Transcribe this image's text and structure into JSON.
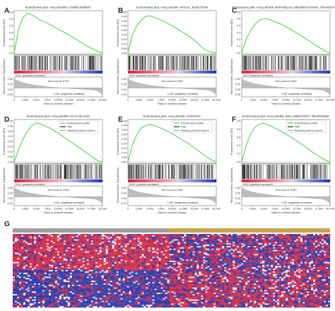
{
  "chart_data": [
    {
      "type": "line",
      "letter": "A",
      "title": "Enrichment plot: HALLMARK COMPLEMENT",
      "ylabel": "Enrichment score (ES)",
      "y_ticks": [
        "0.6",
        "0.5",
        "0.4",
        "0.3",
        "0.2",
        "0.1",
        "0.0"
      ],
      "ylim": [
        0,
        0.6
      ],
      "x_ticks": [
        "0",
        "2,500",
        "5,000",
        "7,500",
        "10,000",
        "12,500",
        "15,000",
        "17,500",
        "20,000"
      ],
      "xlim": [
        0,
        20000
      ],
      "x": [
        0,
        1000,
        2000,
        3000,
        4000,
        5000,
        6000,
        8000,
        10000,
        12000,
        14000,
        16000,
        18000,
        19000,
        20000
      ],
      "y": [
        0,
        0.35,
        0.52,
        0.58,
        0.56,
        0.52,
        0.48,
        0.42,
        0.35,
        0.28,
        0.2,
        0.12,
        0.05,
        0.02,
        0
      ],
      "high_label": "'HIGH' (positively correlated)",
      "low_label": "'LOW' (negatively correlated)",
      "zero_cross": "Zero cross at 11263",
      "metric_ylabel": "Ranked list metric (Signal2Noise)",
      "metric_ticks": [
        "0.50",
        "0.25",
        "0.00",
        "-0.25"
      ],
      "xlabel": "Rank in ordered dataset"
    },
    {
      "type": "line",
      "letter": "B",
      "title": "Enrichment plot: HALLMARK APICAL JUNCTION",
      "ylabel": "Enrichment score (ES)",
      "y_ticks": [
        "0.45",
        "0.40",
        "0.35",
        "0.30",
        "0.25",
        "0.20",
        "0.15",
        "0.10",
        "0.05",
        "0.00"
      ],
      "ylim": [
        0,
        0.45
      ],
      "x_ticks": [
        "0",
        "2,500",
        "5,000",
        "7,500",
        "10,000",
        "12,500",
        "15,000",
        "17,500",
        "20,000"
      ],
      "xlim": [
        0,
        20000
      ],
      "x": [
        0,
        1000,
        2000,
        3000,
        4000,
        5000,
        6000,
        8000,
        10000,
        12000,
        14000,
        16000,
        17500,
        19000,
        20000
      ],
      "y": [
        0,
        0.2,
        0.3,
        0.36,
        0.4,
        0.41,
        0.39,
        0.35,
        0.3,
        0.24,
        0.18,
        0.1,
        0.03,
        0.01,
        0
      ],
      "high_label": "'HIGH' (positively correlated)",
      "low_label": "'LOW' (negatively correlated)",
      "zero_cross": "Zero cross at 12464",
      "metric_ylabel": "Ranked list metric (Signal2Noise)",
      "metric_ticks": [
        "0.50",
        "0.25",
        "0.00",
        "-0.25"
      ],
      "xlabel": "Rank in ordered dataset"
    },
    {
      "type": "line",
      "letter": "C",
      "title": "Enrichment plot: HALLMARK EPITHELIAL MESENCHYMAL TRANSITION",
      "ylabel": "Enrichment score (ES)",
      "y_ticks": [
        "0.6",
        "0.5",
        "0.4",
        "0.3",
        "0.2",
        "0.1",
        "0.0"
      ],
      "ylim": [
        0,
        0.6
      ],
      "x_ticks": [
        "0",
        "2,500",
        "5,000",
        "7,500",
        "10,000",
        "12,500",
        "15,000",
        "17,500",
        "20,000"
      ],
      "xlim": [
        0,
        20000
      ],
      "x": [
        0,
        1000,
        2000,
        3000,
        4000,
        5000,
        6000,
        7000,
        9000,
        11000,
        13000,
        15000,
        17000,
        19000,
        20000
      ],
      "y": [
        0,
        0.2,
        0.33,
        0.42,
        0.48,
        0.5,
        0.5,
        0.47,
        0.42,
        0.35,
        0.27,
        0.19,
        0.1,
        0.03,
        0
      ],
      "high_label": "'HIGH' (positively correlated)",
      "low_label": "'LOW' (negatively correlated)",
      "zero_cross": "Zero cross at 12464",
      "metric_ylabel": "Ranked list metric (Signal2Noise)",
      "metric_ticks": [
        "0.50",
        "0.25",
        "0.00",
        "-0.25"
      ],
      "xlabel": "Rank in ordered dataset"
    },
    {
      "type": "line",
      "letter": "D",
      "title": "Enrichment plot: HALLMARK GLYCOLYSIS",
      "ylabel": "Enrichment score (ES)",
      "y_ticks": [
        "0.40",
        "0.35",
        "0.30",
        "0.25",
        "0.20",
        "0.15",
        "0.10",
        "0.05",
        "0.00"
      ],
      "ylim": [
        0,
        0.4
      ],
      "x_ticks": [
        "0",
        "2,500",
        "5,000",
        "7,500",
        "10,000",
        "12,500",
        "15,000",
        "17,500",
        "20,000"
      ],
      "xlim": [
        0,
        20000
      ],
      "x": [
        0,
        1000,
        2000,
        3000,
        4000,
        5000,
        6000,
        8000,
        10000,
        12000,
        14000,
        16000,
        18000,
        19000,
        20000
      ],
      "y": [
        0,
        0.12,
        0.22,
        0.3,
        0.35,
        0.38,
        0.37,
        0.33,
        0.28,
        0.22,
        0.16,
        0.1,
        0.04,
        0.01,
        0
      ],
      "high_label": "'HIGH' (positively correlated)",
      "low_label": "'LOW' (negatively correlated)",
      "zero_cross": "Zero cross at 12464",
      "metric_ylabel": "Ranked list metric (Signal2Noise)",
      "metric_ticks": [
        "0.50",
        "0.25",
        "0.00",
        "-0.25"
      ],
      "xlabel": "Rank in ordered dataset"
    },
    {
      "type": "line",
      "letter": "E",
      "title": "Enrichment plot: HALLMARK HYPOXIA",
      "ylabel": "Enrichment score (ES)",
      "y_ticks": [
        "0.45",
        "0.40",
        "0.35",
        "0.30",
        "0.25",
        "0.20",
        "0.15",
        "0.10",
        "0.05",
        "0.00"
      ],
      "ylim": [
        0,
        0.45
      ],
      "x_ticks": [
        "0",
        "2,500",
        "5,000",
        "7,500",
        "10,000",
        "12,500",
        "15,000",
        "17,500",
        "20,000"
      ],
      "xlim": [
        0,
        20000
      ],
      "x": [
        0,
        1000,
        2000,
        3000,
        4000,
        5000,
        6000,
        8000,
        10000,
        12000,
        14000,
        16000,
        18000,
        19000,
        20000
      ],
      "y": [
        0,
        0.18,
        0.3,
        0.37,
        0.4,
        0.41,
        0.4,
        0.36,
        0.31,
        0.25,
        0.19,
        0.12,
        0.05,
        0.02,
        0
      ],
      "high_label": "'HIGH' (positively correlated)",
      "low_label": "'LOW' (negatively correlated)",
      "zero_cross": "Zero cross at 12464",
      "metric_ylabel": "Ranked list metric (Signal2Noise)",
      "metric_ticks": [
        "0.50",
        "0.25",
        "0.00",
        "-0.25"
      ],
      "xlabel": "Rank in ordered dataset"
    },
    {
      "type": "line",
      "letter": "F",
      "title": "Enrichment plot: HALLMARK INFLAMMATORY RESPONSE",
      "ylabel": "Enrichment score (ES)",
      "y_ticks": [
        "0.5",
        "0.4",
        "0.3",
        "0.2",
        "0.1",
        "0.0"
      ],
      "ylim": [
        0,
        0.5
      ],
      "x_ticks": [
        "0",
        "2,500",
        "5,000",
        "7,500",
        "10,000",
        "12,500",
        "15,000",
        "17,500",
        "20,000"
      ],
      "xlim": [
        0,
        20000
      ],
      "x": [
        0,
        1000,
        2000,
        3000,
        4000,
        5000,
        6000,
        8000,
        10000,
        12000,
        14000,
        16000,
        18000,
        19000,
        20000
      ],
      "y": [
        0,
        0.2,
        0.34,
        0.42,
        0.46,
        0.47,
        0.45,
        0.4,
        0.34,
        0.27,
        0.2,
        0.12,
        0.05,
        0.02,
        0
      ],
      "high_label": "'HIGH' (positively correlated)",
      "low_label": "'LOW' (negatively correlated)",
      "zero_cross": "Zero cross at 12464",
      "metric_ylabel": "Ranked list metric (Signal2Noise)",
      "metric_ticks": [
        "0.50",
        "0.25",
        "0.00",
        "-0.25"
      ],
      "xlabel": "Rank in ordered dataset"
    },
    {
      "type": "heatmap",
      "letter": "G",
      "group_colors": [
        "#9e9e9e",
        "#c9a24a"
      ],
      "group_split_fraction": 0.49,
      "colors": {
        "high": "#d9304a",
        "low": "#2a3fb0",
        "mid": "#f2eef2"
      }
    }
  ],
  "legend": {
    "items": [
      {
        "label": "Enrichment profile",
        "color": "#33cc33"
      },
      {
        "label": "Hits",
        "color": "#000000"
      },
      {
        "label": "Ranking metric scores",
        "color": "#9a9a9a"
      }
    ]
  },
  "colors": {
    "es_line": "#33cc33",
    "hits": "#111111",
    "metric": "#9a9a9a",
    "bar_high": "#d8243c",
    "bar_low": "#2036b8"
  }
}
